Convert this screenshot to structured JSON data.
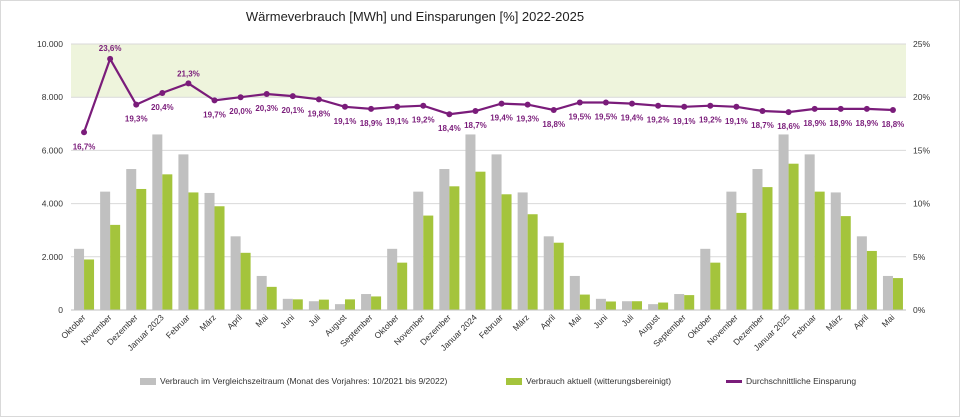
{
  "title": "Wärmeverbrauch [MWh] und Einsparungen [%] 2022-2025",
  "colors": {
    "reference": "#c0c0c0",
    "actual": "#a4c43c",
    "saving": "#7a1c7a",
    "band": "#eef4dc"
  },
  "chart_data": {
    "type": "bar+line",
    "title": "Wärmeverbrauch [MWh] und Einsparungen [%] 2022-2025",
    "categories": [
      "Oktober",
      "November",
      "Dezember",
      "Januar 2023",
      "Februar",
      "März",
      "April",
      "Mai",
      "Juni",
      "Juli",
      "August",
      "September",
      "Oktober",
      "November",
      "Dezember",
      "Januar 2024",
      "Februar",
      "März",
      "April",
      "Mai",
      "Juni",
      "Juli",
      "August",
      "September",
      "Oktober",
      "November",
      "Dezember",
      "Januar 2025",
      "Februar",
      "März",
      "April",
      "Mai"
    ],
    "y_left": {
      "min": 0,
      "max": 10000,
      "ticks": [
        0,
        2000,
        4000,
        6000,
        8000,
        10000
      ],
      "tick_labels": [
        "0",
        "2.000",
        "4.000",
        "6.000",
        "8.000",
        "10.000"
      ]
    },
    "y_right": {
      "min": 0,
      "max": 25,
      "ticks": [
        0,
        5,
        10,
        15,
        20,
        25
      ],
      "tick_labels": [
        "0%",
        "5%",
        "10%",
        "15%",
        "20%",
        "25%"
      ]
    },
    "highlight_band": {
      "from": 8000,
      "to": 10000
    },
    "series": [
      {
        "name": "Verbrauch im Vergleichszeitraum (Monat des Vorjahres: 10/2021 bis 9/2022)",
        "type": "bar",
        "axis": "left",
        "values": [
          2300,
          4450,
          5300,
          6600,
          5850,
          4400,
          2770,
          1280,
          420,
          330,
          220,
          600,
          2300,
          4450,
          5300,
          6600,
          5850,
          4420,
          2770,
          1280,
          420,
          330,
          220,
          600,
          2300,
          4450,
          5300,
          6600,
          5850,
          4420,
          2770,
          1280
        ]
      },
      {
        "name": "Verbrauch aktuell (witterungsbereinigt)",
        "type": "bar",
        "axis": "left",
        "values": [
          1900,
          3200,
          4550,
          5100,
          4420,
          3900,
          2150,
          870,
          400,
          390,
          400,
          510,
          1780,
          3550,
          4650,
          5200,
          4350,
          3600,
          2530,
          580,
          320,
          330,
          280,
          560,
          1780,
          3650,
          4620,
          5500,
          4450,
          3530,
          2220,
          1200
        ]
      },
      {
        "name": "Durchschnittliche Einsparung",
        "type": "line",
        "axis": "right",
        "values": [
          16.7,
          23.6,
          19.3,
          20.4,
          21.3,
          19.7,
          20.0,
          20.3,
          20.1,
          19.8,
          19.1,
          18.9,
          19.1,
          19.2,
          18.4,
          18.7,
          19.4,
          19.3,
          18.8,
          19.5,
          19.5,
          19.4,
          19.2,
          19.1,
          19.2,
          19.1,
          18.7,
          18.6,
          18.9,
          18.9,
          18.9,
          18.8
        ],
        "labels": [
          "16,7%",
          "23,6%",
          "19,3%",
          "20,4%",
          "21,3%",
          "19,7%",
          "20,0%",
          "20,3%",
          "20,1%",
          "19,8%",
          "19,1%",
          "18,9%",
          "19,1%",
          "19,2%",
          "18,4%",
          "18,7%",
          "19,4%",
          "19,3%",
          "18,8%",
          "19,5%",
          "19,5%",
          "19,4%",
          "19,2%",
          "19,1%",
          "19,2%",
          "19,1%",
          "18,7%",
          "18,6%",
          "18,9%",
          "18,9%",
          "18,9%",
          "18,8%"
        ]
      }
    ]
  }
}
